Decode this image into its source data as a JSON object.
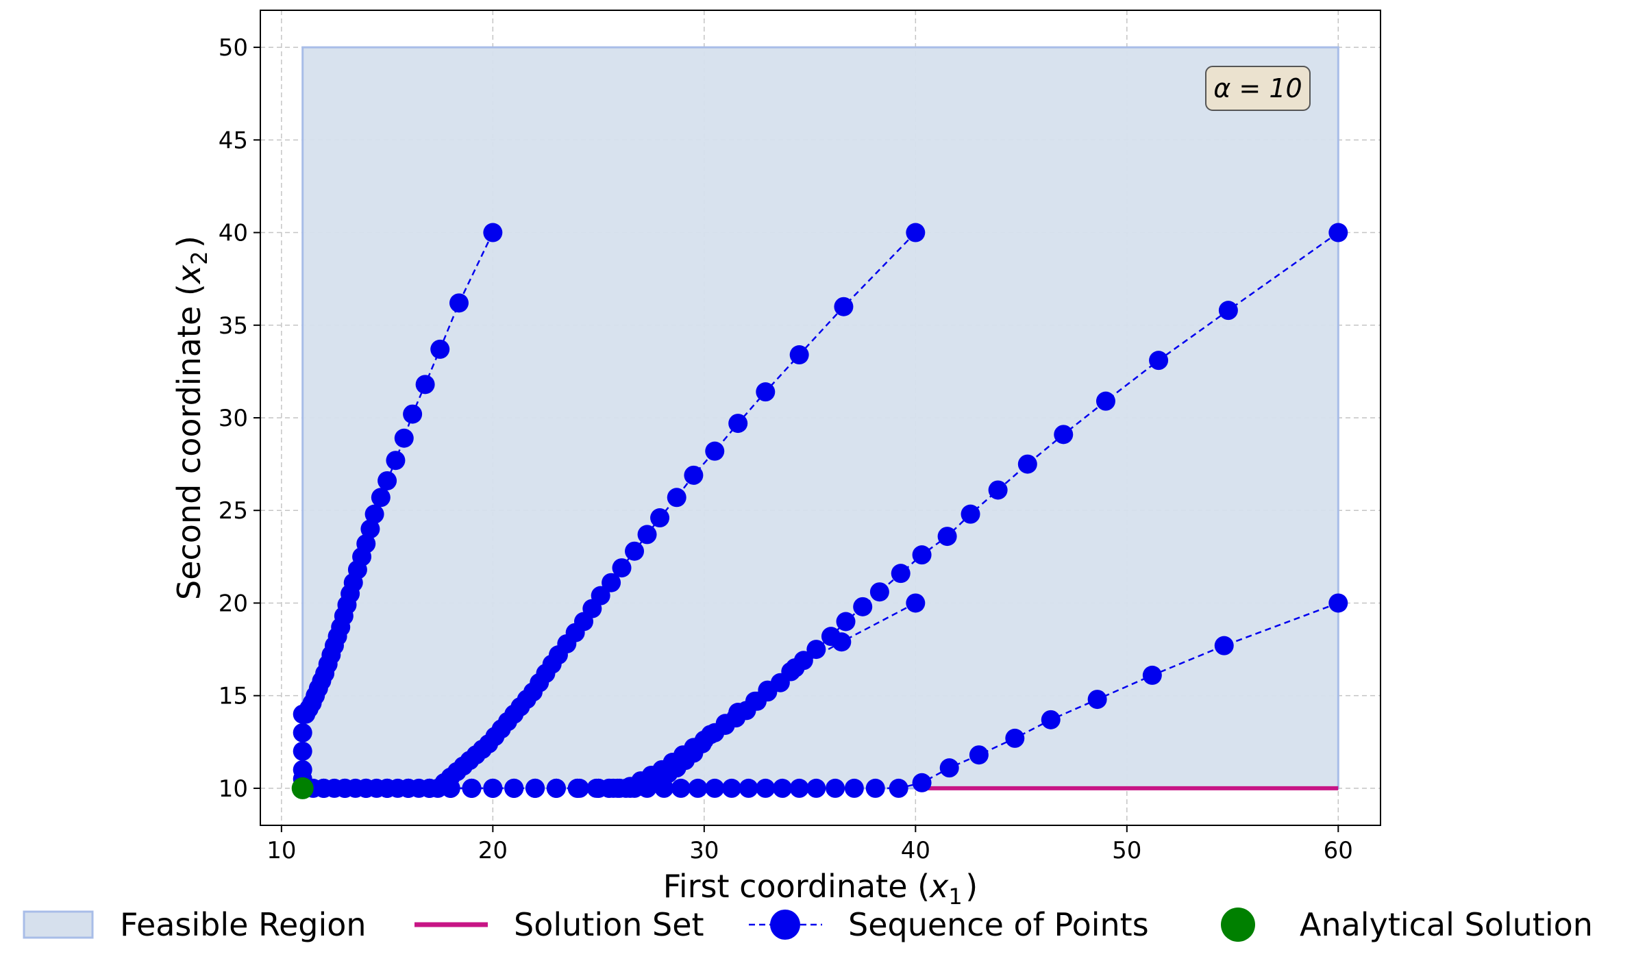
{
  "chart_data": {
    "type": "line",
    "xlabel": "First coordinate ($x_1$)",
    "ylabel": "Second coordinate ($x_2$)",
    "xlim": [
      9,
      62
    ],
    "ylim": [
      8,
      52
    ],
    "xticks": [
      10,
      20,
      30,
      40,
      50,
      60
    ],
    "yticks": [
      10,
      15,
      20,
      25,
      30,
      35,
      40,
      45,
      50
    ],
    "grid": true,
    "legend_position": "bottom",
    "annotation": "α = 10",
    "colors": {
      "feasible_fill": "#d6e0ed",
      "feasible_edge": "#a8bde8",
      "solution_set": "#c71585",
      "sequence": "#0000ee",
      "analytical": "#008000",
      "annotation_bg": "#ebe2cf"
    },
    "feasible_region": {
      "x": [
        11,
        60
      ],
      "y": [
        10,
        50
      ]
    },
    "solution_set": {
      "x": [
        40,
        60
      ],
      "y": [
        10,
        10
      ]
    },
    "analytical_solution": {
      "x": 11,
      "y": 10
    },
    "sequences": [
      {
        "x": [
          20,
          18.4,
          17.5,
          16.8,
          16.2,
          15.8,
          15.4,
          15.0,
          14.7,
          14.4,
          14.2,
          14.0,
          13.8,
          13.6,
          13.4,
          13.25,
          13.1,
          12.95,
          12.8,
          12.65,
          12.5,
          12.35,
          12.2,
          12.05,
          11.9,
          11.75,
          11.6,
          11.45,
          11.3,
          11.15,
          11.0,
          11.0,
          11.0,
          11.0,
          11.0,
          11.0
        ],
        "y": [
          40,
          36.2,
          33.7,
          31.8,
          30.2,
          28.9,
          27.7,
          26.6,
          25.7,
          24.8,
          24.0,
          23.2,
          22.5,
          21.8,
          21.1,
          20.5,
          19.9,
          19.3,
          18.7,
          18.2,
          17.7,
          17.2,
          16.7,
          16.2,
          15.8,
          15.4,
          15.0,
          14.6,
          14.3,
          14.0,
          14.0,
          13.0,
          12.0,
          11.0,
          10.5,
          10.0
        ]
      },
      {
        "x": [
          40,
          36.6,
          34.5,
          32.9,
          31.6,
          30.5,
          29.5,
          28.7,
          27.9,
          27.3,
          26.7,
          26.1,
          25.6,
          25.1,
          24.7,
          24.3,
          23.9,
          23.5,
          23.1,
          22.8,
          22.5,
          22.2,
          21.9,
          21.6,
          21.3,
          21.0,
          20.7,
          20.4,
          20.1,
          19.8,
          19.5,
          19.2,
          18.9,
          18.6,
          18.3,
          18.0,
          17.7,
          17.4,
          16.5,
          15.5,
          14.5,
          13.5,
          12.5,
          11.5,
          11.0
        ],
        "y": [
          40,
          36.0,
          33.4,
          31.4,
          29.7,
          28.2,
          26.9,
          25.7,
          24.6,
          23.7,
          22.8,
          21.9,
          21.1,
          20.4,
          19.7,
          19.0,
          18.4,
          17.8,
          17.2,
          16.7,
          16.2,
          15.7,
          15.2,
          14.8,
          14.4,
          14.0,
          13.6,
          13.2,
          12.8,
          12.4,
          12.1,
          11.8,
          11.5,
          11.2,
          10.9,
          10.6,
          10.3,
          10.0,
          10.0,
          10.0,
          10.0,
          10.0,
          10.0,
          10.0,
          10.0
        ]
      },
      {
        "x": [
          60,
          54.8,
          51.5,
          49.0,
          47.0,
          45.3,
          43.9,
          42.6,
          41.5,
          40.3,
          39.3,
          38.3,
          37.5,
          36.7,
          36.0,
          35.3,
          34.7,
          34.1,
          33.6,
          33.0,
          32.5,
          32.0,
          31.5,
          31.0,
          30.5,
          30.0,
          29.5,
          29.0,
          28.5,
          28.0,
          27.5,
          27.0,
          26.5,
          26.0,
          25.5,
          25.0,
          24.0,
          23.0,
          22.0,
          21.0,
          20.0,
          19.0,
          18.0,
          17.0,
          16.0,
          15.0,
          14.0,
          13.0,
          12.0,
          11.0
        ],
        "y": [
          40,
          35.8,
          33.1,
          30.9,
          29.1,
          27.5,
          26.1,
          24.8,
          23.6,
          22.6,
          21.6,
          20.6,
          19.8,
          19.0,
          18.2,
          17.5,
          16.9,
          16.3,
          15.7,
          15.2,
          14.7,
          14.2,
          13.8,
          13.4,
          13.0,
          12.6,
          12.2,
          11.8,
          11.4,
          11.0,
          10.7,
          10.4,
          10.1,
          10.0,
          10.0,
          10.0,
          10.0,
          10.0,
          10.0,
          10.0,
          10.0,
          10.0,
          10.0,
          10.0,
          10.0,
          10.0,
          10.0,
          10.0,
          10.0,
          10.0
        ]
      },
      {
        "x": [
          40,
          36.5,
          34.3,
          33.0,
          32.4,
          31.6,
          31.0,
          30.3,
          29.9,
          29.5,
          29.1,
          28.7,
          28.3,
          27.9,
          27.5,
          27.1,
          26.7,
          26.3,
          25.9,
          25.5,
          25.0,
          24.0,
          23.0,
          22.0,
          21.0,
          20.0,
          19.0,
          18.0,
          17.0,
          16.0,
          15.0,
          14.0,
          13.0,
          12.0,
          11.0
        ],
        "y": [
          20,
          17.9,
          16.5,
          15.3,
          14.7,
          14.1,
          13.5,
          12.9,
          12.4,
          11.9,
          11.5,
          11.1,
          10.8,
          10.5,
          10.3,
          10.1,
          10.0,
          10.0,
          10.0,
          10.0,
          10.0,
          10.0,
          10.0,
          10.0,
          10.0,
          10.0,
          10.0,
          10.0,
          10.0,
          10.0,
          10.0,
          10.0,
          10.0,
          10.0,
          10.0
        ]
      },
      {
        "x": [
          60,
          54.6,
          51.2,
          48.6,
          46.4,
          44.7,
          43.0,
          41.6,
          40.3,
          39.2,
          38.1,
          37.1,
          36.2,
          35.3,
          34.5,
          33.7,
          32.9,
          32.1,
          31.3,
          30.5,
          29.7,
          28.9,
          28.1,
          27.3,
          26.5,
          25.7,
          24.9,
          24.1,
          23.0,
          22.0,
          21.0,
          20.0,
          19.0,
          18.0,
          17.0,
          16.0,
          15.0,
          14.0,
          13.0,
          12.0,
          11.0
        ],
        "y": [
          20,
          17.7,
          16.1,
          14.8,
          13.7,
          12.7,
          11.8,
          11.1,
          10.3,
          10.0,
          10.0,
          10.0,
          10.0,
          10.0,
          10.0,
          10.0,
          10.0,
          10.0,
          10.0,
          10.0,
          10.0,
          10.0,
          10.0,
          10.0,
          10.0,
          10.0,
          10.0,
          10.0,
          10.0,
          10.0,
          10.0,
          10.0,
          10.0,
          10.0,
          10.0,
          10.0,
          10.0,
          10.0,
          10.0,
          10.0,
          10.0
        ]
      }
    ],
    "legend": [
      {
        "key": "feasible",
        "label": "Feasible Region"
      },
      {
        "key": "solution",
        "label": "Solution Set"
      },
      {
        "key": "sequence",
        "label": "Sequence of Points"
      },
      {
        "key": "analytical",
        "label": "Analytical Solution"
      }
    ]
  }
}
